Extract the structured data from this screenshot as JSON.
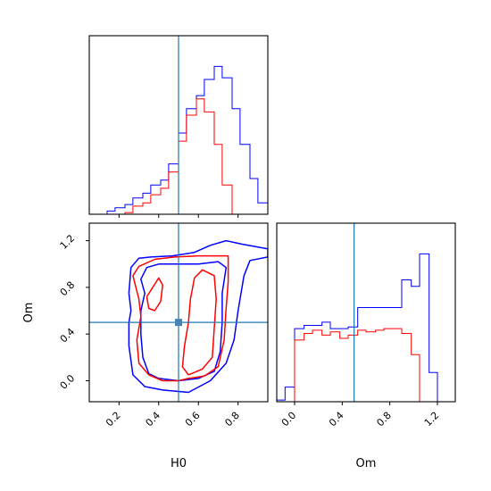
{
  "colors": {
    "series_a": "#0000ff",
    "series_b": "#ff0000",
    "truth": "#1f77b4"
  },
  "chart_data": {
    "type": "corner",
    "parameters": [
      "H0",
      "Om"
    ],
    "truth": {
      "H0": 0.5,
      "Om": 0.5
    },
    "hist_H0": {
      "xlim": [
        0.05,
        0.95
      ],
      "bin_edges": [
        0.05,
        0.09,
        0.14,
        0.18,
        0.23,
        0.27,
        0.32,
        0.36,
        0.41,
        0.45,
        0.5,
        0.54,
        0.59,
        0.63,
        0.68,
        0.72,
        0.77,
        0.81,
        0.86,
        0.9,
        0.95
      ],
      "series": [
        {
          "color": "blue",
          "values": [
            0,
            0,
            0.02,
            0.04,
            0.06,
            0.1,
            0.13,
            0.18,
            0.21,
            0.31,
            0.5,
            0.65,
            0.73,
            0.83,
            0.91,
            0.84,
            0.65,
            0.43,
            0.22,
            0.07
          ]
        },
        {
          "color": "red",
          "values": [
            0,
            0,
            0,
            0,
            0.01,
            0.05,
            0.07,
            0.12,
            0.16,
            0.26,
            0.45,
            0.61,
            0.71,
            0.63,
            0.43,
            0.18,
            0,
            0,
            0,
            0
          ]
        }
      ]
    },
    "hist_Om": {
      "xlim": [
        -0.15,
        1.35
      ],
      "bin_edges": [
        -0.15,
        -0.08,
        0.0,
        0.08,
        0.15,
        0.23,
        0.3,
        0.38,
        0.45,
        0.53,
        0.6,
        0.68,
        0.75,
        0.83,
        0.9,
        0.98,
        1.05,
        1.13,
        1.2,
        1.28,
        1.35
      ],
      "series": [
        {
          "color": "blue",
          "values": [
            0.01,
            0.09,
            0.45,
            0.47,
            0.47,
            0.49,
            0.45,
            0.45,
            0.46,
            0.58,
            0.58,
            0.58,
            0.58,
            0.58,
            0.75,
            0.71,
            0.91,
            0.18,
            0,
            0
          ]
        },
        {
          "color": "red",
          "values": [
            0,
            0,
            0.38,
            0.42,
            0.44,
            0.41,
            0.43,
            0.39,
            0.41,
            0.44,
            0.43,
            0.44,
            0.45,
            0.45,
            0.42,
            0.29,
            0,
            0,
            0,
            0
          ]
        }
      ]
    },
    "scatter": {
      "xlabel": "H0",
      "ylabel": "Om",
      "xlim": [
        0.05,
        0.95
      ],
      "ylim": [
        -0.18,
        1.35
      ],
      "xticks": [
        "0.2",
        "0.4",
        "0.6",
        "0.8"
      ],
      "xtick_values": [
        0.2,
        0.4,
        0.6,
        0.8
      ],
      "yticks": [
        "0.0",
        "0.4",
        "0.8",
        "1.2"
      ],
      "ytick_values": [
        0.0,
        0.4,
        0.8,
        1.2
      ],
      "om_xticks": [
        "0.0",
        "0.4",
        "0.8",
        "1.2"
      ],
      "om_xtick_values": [
        0.0,
        0.4,
        0.8,
        1.2
      ],
      "contours": [
        {
          "color": "blue",
          "level": "outer",
          "points": [
            [
              0.25,
              0.75
            ],
            [
              0.26,
              0.97
            ],
            [
              0.3,
              1.05
            ],
            [
              0.36,
              1.06
            ],
            [
              0.47,
              1.07
            ],
            [
              0.58,
              1.1
            ],
            [
              0.66,
              1.16
            ],
            [
              0.74,
              1.2
            ],
            [
              0.82,
              1.17
            ],
            [
              0.95,
              1.13
            ],
            [
              0.95,
              1.06
            ],
            [
              0.86,
              1.03
            ],
            [
              0.83,
              0.9
            ],
            [
              0.8,
              0.6
            ],
            [
              0.78,
              0.35
            ],
            [
              0.74,
              0.15
            ],
            [
              0.66,
              0.0
            ],
            [
              0.55,
              -0.1
            ],
            [
              0.42,
              -0.08
            ],
            [
              0.33,
              -0.05
            ],
            [
              0.27,
              0.05
            ],
            [
              0.25,
              0.3
            ],
            [
              0.25,
              0.5
            ],
            [
              0.26,
              0.6
            ],
            [
              0.25,
              0.75
            ]
          ]
        },
        {
          "color": "blue",
          "level": "inner",
          "points": [
            [
              0.31,
              0.6
            ],
            [
              0.33,
              0.75
            ],
            [
              0.31,
              0.87
            ],
            [
              0.34,
              0.97
            ],
            [
              0.4,
              1.0
            ],
            [
              0.5,
              1.0
            ],
            [
              0.6,
              1.0
            ],
            [
              0.7,
              1.02
            ],
            [
              0.74,
              0.97
            ],
            [
              0.72,
              0.75
            ],
            [
              0.72,
              0.5
            ],
            [
              0.71,
              0.25
            ],
            [
              0.68,
              0.08
            ],
            [
              0.6,
              0.02
            ],
            [
              0.5,
              0.0
            ],
            [
              0.4,
              0.02
            ],
            [
              0.35,
              0.06
            ],
            [
              0.32,
              0.2
            ],
            [
              0.31,
              0.4
            ],
            [
              0.31,
              0.6
            ]
          ]
        },
        {
          "color": "red",
          "level": "outer",
          "points": [
            [
              0.5,
              0.0
            ],
            [
              0.55,
              0.02
            ],
            [
              0.63,
              0.04
            ],
            [
              0.7,
              0.12
            ],
            [
              0.73,
              0.35
            ],
            [
              0.74,
              0.62
            ],
            [
              0.75,
              0.85
            ],
            [
              0.75,
              1.07
            ],
            [
              0.6,
              1.07
            ],
            [
              0.48,
              1.06
            ],
            [
              0.38,
              1.04
            ],
            [
              0.3,
              0.98
            ],
            [
              0.27,
              0.9
            ],
            [
              0.3,
              0.7
            ],
            [
              0.31,
              0.55
            ],
            [
              0.29,
              0.35
            ],
            [
              0.3,
              0.15
            ],
            [
              0.35,
              0.05
            ],
            [
              0.42,
              0.0
            ],
            [
              0.5,
              0.0
            ]
          ]
        },
        {
          "color": "red",
          "level": "inner",
          "points": [
            [
              0.55,
              0.05
            ],
            [
              0.62,
              0.1
            ],
            [
              0.67,
              0.2
            ],
            [
              0.68,
              0.45
            ],
            [
              0.69,
              0.7
            ],
            [
              0.68,
              0.9
            ],
            [
              0.62,
              0.95
            ],
            [
              0.58,
              0.88
            ],
            [
              0.56,
              0.7
            ],
            [
              0.55,
              0.5
            ],
            [
              0.53,
              0.3
            ],
            [
              0.52,
              0.12
            ],
            [
              0.55,
              0.05
            ]
          ]
        },
        {
          "color": "red",
          "level": "inner-left",
          "points": [
            [
              0.34,
              0.72
            ],
            [
              0.37,
              0.8
            ],
            [
              0.4,
              0.88
            ],
            [
              0.42,
              0.82
            ],
            [
              0.41,
              0.68
            ],
            [
              0.38,
              0.6
            ],
            [
              0.35,
              0.62
            ],
            [
              0.34,
              0.72
            ]
          ]
        }
      ]
    }
  }
}
